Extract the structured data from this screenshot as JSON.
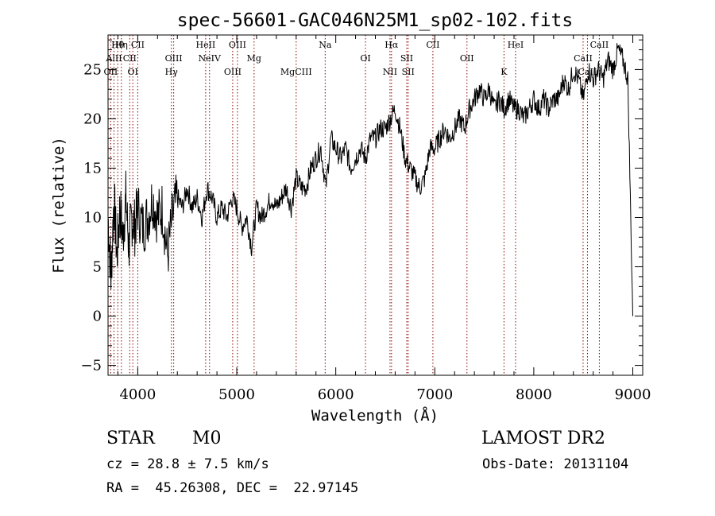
{
  "chart_data": {
    "type": "line",
    "title": "spec-56601-GAC046N25M1_sp02-102.fits",
    "xlabel": "Wavelength (Å)",
    "ylabel": "Flux (relative)",
    "xlim": [
      3700,
      9100
    ],
    "ylim": [
      -6,
      28.5
    ],
    "xticks": [
      4000,
      5000,
      6000,
      7000,
      8000,
      9000
    ],
    "yticks": [
      -5,
      0,
      5,
      10,
      15,
      20,
      25
    ],
    "grid": false,
    "line_color": "#000000",
    "marker_color": "#8b0000",
    "series": [
      {
        "x": [
          3700,
          3730,
          3760,
          3790,
          3820,
          3850,
          3880,
          3910,
          3940,
          3970,
          4000,
          4050,
          4100,
          4150,
          4200,
          4250,
          4300,
          4350,
          4400,
          4450,
          4500,
          4550,
          4600,
          4650,
          4700,
          4750,
          4800,
          4850,
          4900,
          4950,
          5000,
          5050,
          5100,
          5150,
          5200,
          5250,
          5300,
          5350,
          5400,
          5450,
          5500,
          5550,
          5600,
          5650,
          5700,
          5750,
          5800,
          5850,
          5900,
          5950,
          6000,
          6050,
          6100,
          6150,
          6200,
          6250,
          6300,
          6350,
          6400,
          6450,
          6500,
          6550,
          6600,
          6650,
          6700,
          6750,
          6800,
          6850,
          6900,
          6950,
          7000,
          7050,
          7100,
          7150,
          7200,
          7250,
          7300,
          7350,
          7400,
          7450,
          7500,
          7550,
          7600,
          7650,
          7700,
          7750,
          7800,
          7850,
          7900,
          7950,
          8000,
          8050,
          8100,
          8150,
          8200,
          8250,
          8300,
          8350,
          8400,
          8450,
          8500,
          8550,
          8600,
          8650,
          8700,
          8750,
          8800,
          8850,
          8900,
          8950,
          9000
        ],
        "values": [
          10,
          4,
          12,
          6,
          11,
          8,
          12,
          7,
          10,
          9,
          11,
          9,
          10,
          12,
          10,
          11,
          6,
          10,
          12,
          11,
          13,
          11,
          12,
          10,
          13,
          12,
          10,
          11,
          10,
          12,
          11,
          9,
          10,
          7,
          11,
          10,
          11,
          12,
          11,
          12,
          13,
          11,
          14,
          13,
          13,
          15,
          16,
          17,
          13,
          18,
          17,
          16,
          17,
          15,
          16,
          17,
          16,
          18,
          18,
          19,
          19,
          20,
          21,
          19,
          16,
          15,
          14,
          13,
          14,
          17,
          17,
          18,
          19,
          18,
          19,
          20,
          19,
          21,
          22,
          23,
          22,
          23,
          21,
          22,
          21,
          22,
          21,
          21,
          20,
          21,
          22,
          21,
          22,
          21,
          22,
          22,
          24,
          23,
          25,
          24,
          22,
          25,
          24,
          25,
          24,
          26,
          25,
          27,
          26,
          24,
          0
        ]
      }
    ],
    "line_markers": [
      {
        "label": "Hθ",
        "x": 3798
      },
      {
        "label": "AlII",
        "x": 3760
      },
      {
        "label": "OII",
        "x": 3727
      },
      {
        "label": "Hη",
        "x": 3835
      },
      {
        "label": "CII",
        "x": 3919
      },
      {
        "label": "OI",
        "x": 3950
      },
      {
        "label": "CII",
        "x": 4000
      },
      {
        "label": "OIII",
        "x": 4363
      },
      {
        "label": "Hγ",
        "x": 4340
      },
      {
        "label": "HeII",
        "x": 4686
      },
      {
        "label": "NeIV",
        "x": 4725
      },
      {
        "label": "OIII",
        "x": 4959
      },
      {
        "label": "OIII",
        "x": 5007
      },
      {
        "label": "Mg",
        "x": 5175
      },
      {
        "label": "MgCIII",
        "x": 5600
      },
      {
        "label": "Na",
        "x": 5893
      },
      {
        "label": "OI",
        "x": 6300
      },
      {
        "label": "NII",
        "x": 6548
      },
      {
        "label": "Hα",
        "x": 6563
      },
      {
        "label": "SII",
        "x": 6717
      },
      {
        "label": "SII",
        "x": 6731
      },
      {
        "label": "CII",
        "x": 6981
      },
      {
        "label": "OII",
        "x": 7325
      },
      {
        "label": "K",
        "x": 7699
      },
      {
        "label": "HeI",
        "x": 7816
      },
      {
        "label": "CaII",
        "x": 8498
      },
      {
        "label": "CaII",
        "x": 8542
      },
      {
        "label": "CaII",
        "x": 8662
      }
    ]
  },
  "info": {
    "class": "STAR",
    "subclass": "M0",
    "survey": "LAMOST DR2",
    "cz": "cz = 28.8 ± 7.5 km/s",
    "obs_date": "Obs-Date: 20131104",
    "coords": "RA =  45.26308, DEC =  22.97145"
  }
}
